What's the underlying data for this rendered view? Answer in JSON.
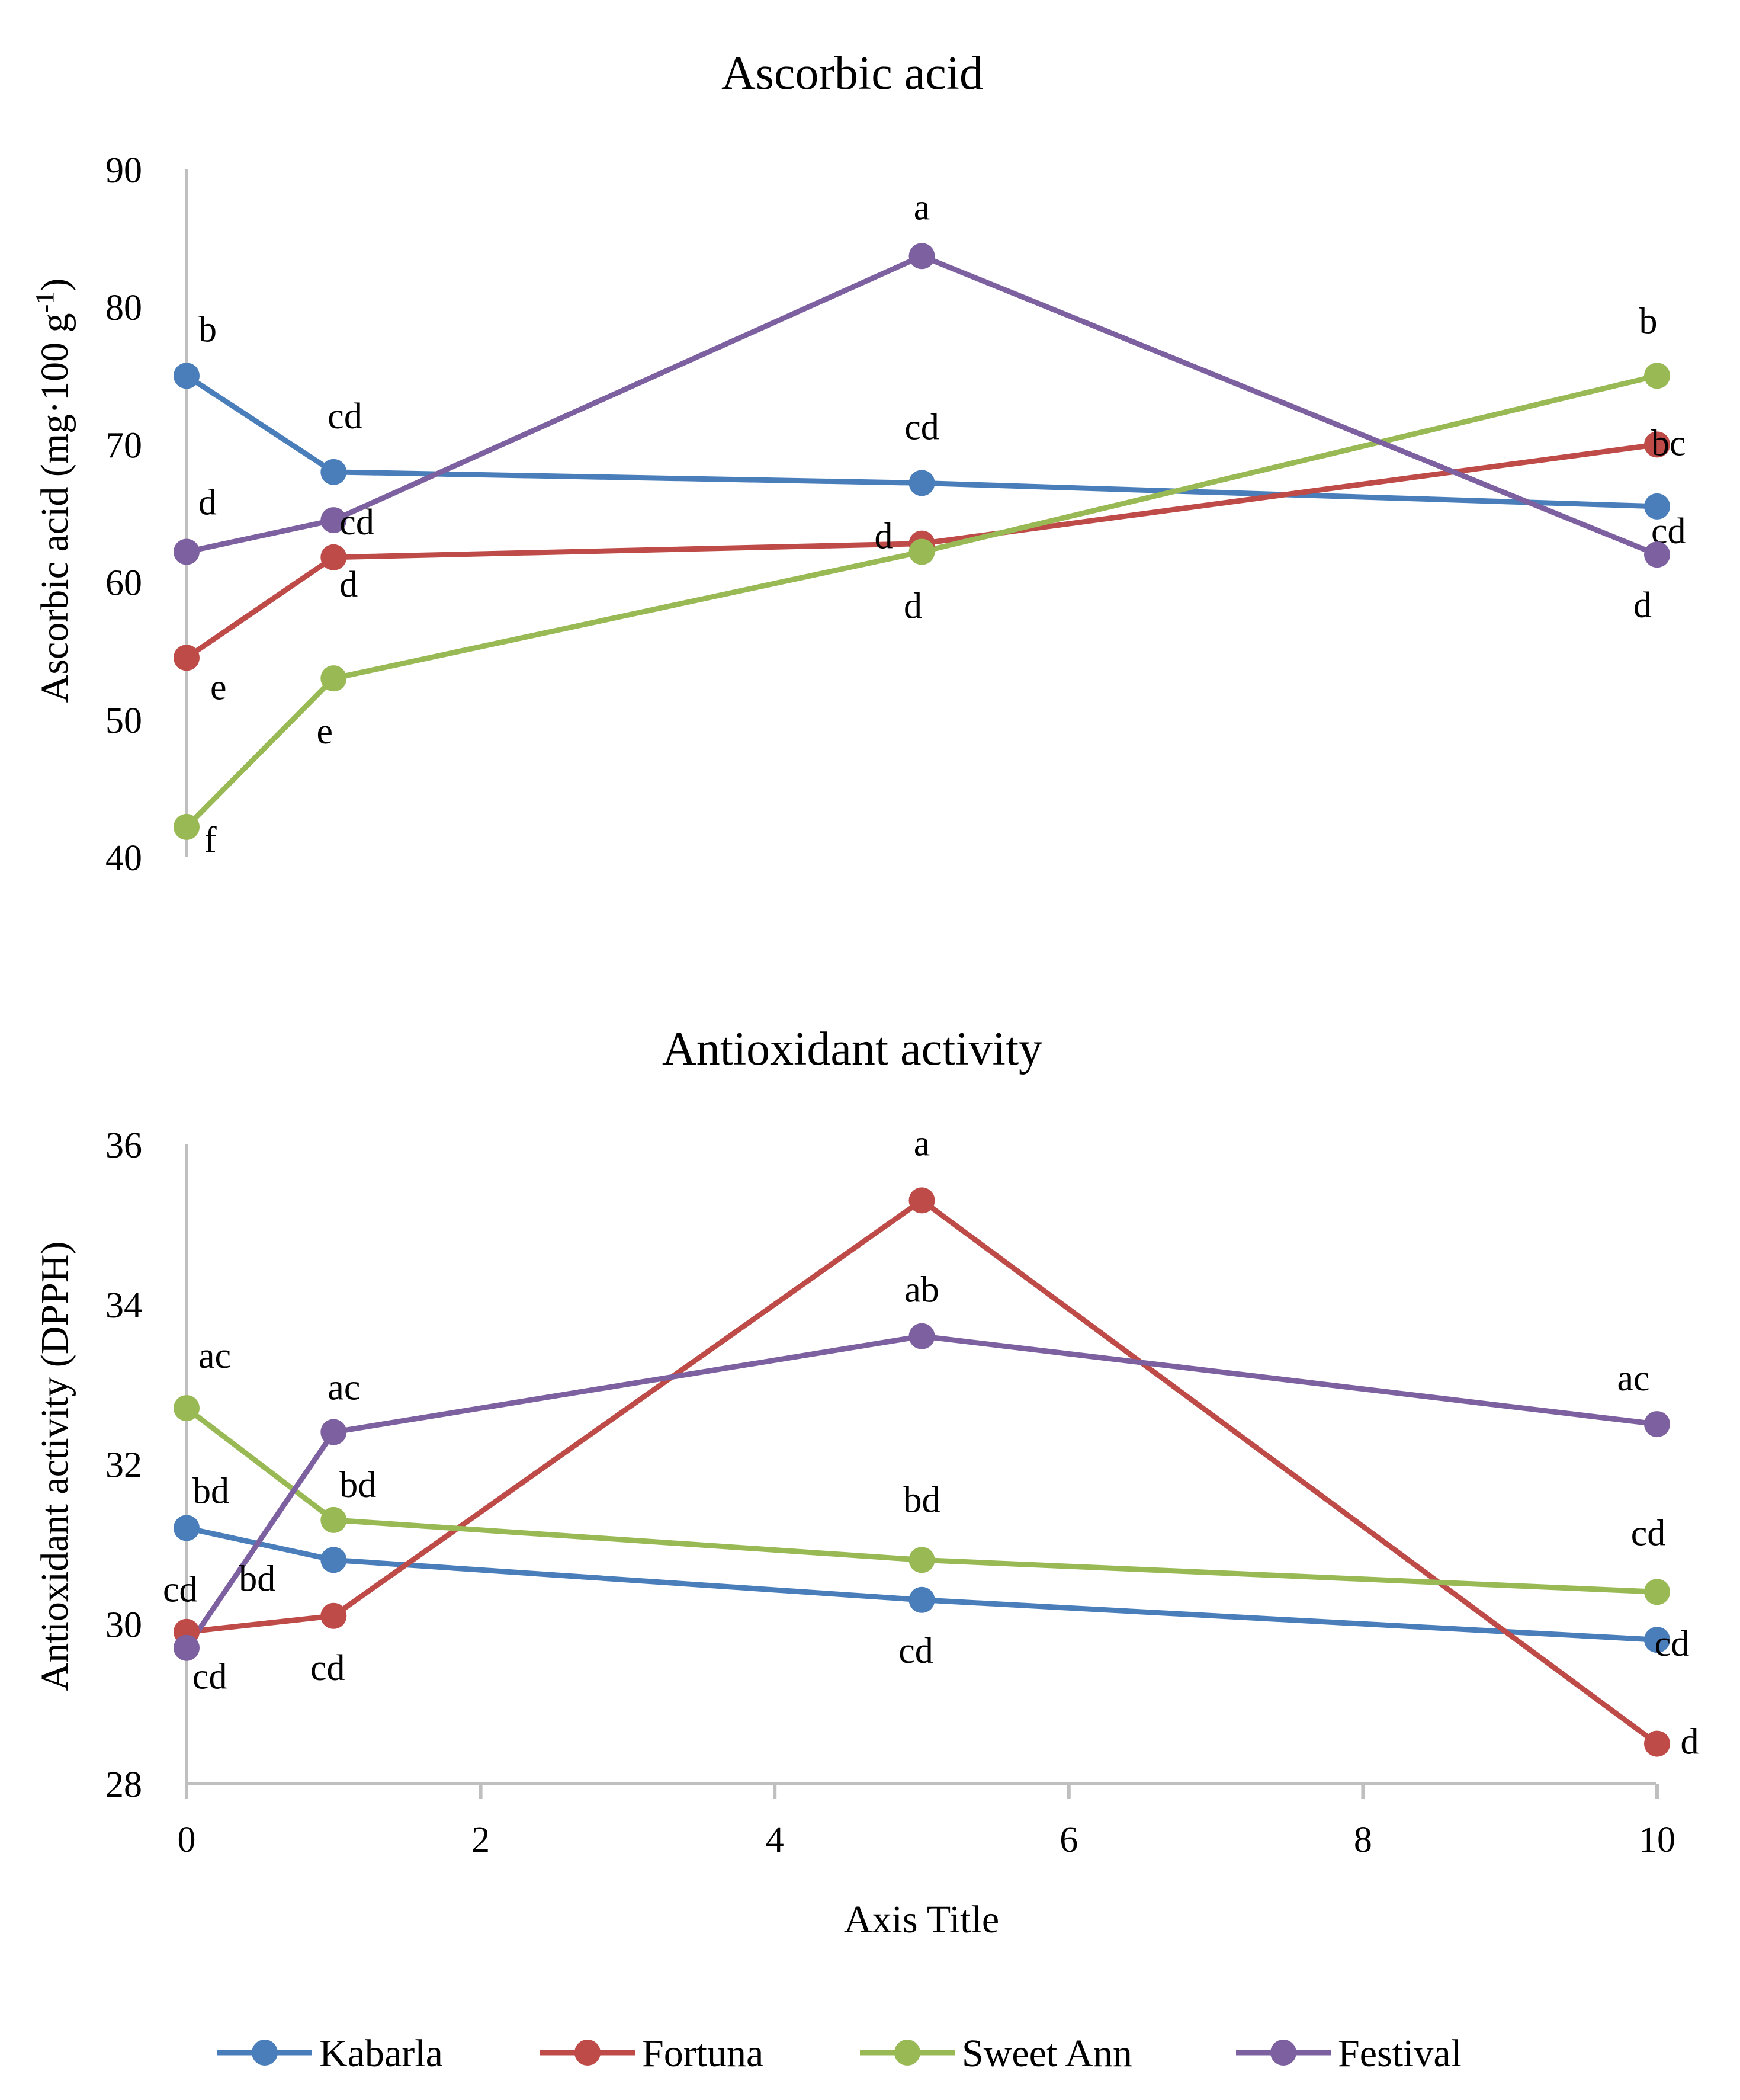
{
  "chart_data": [
    {
      "type": "line",
      "title": "Ascorbic acid",
      "ylabel": "Ascorbic acid (mg·100 g",
      "ylabel_sup": "-1",
      "ylabel_close": ")",
      "ylim": [
        40,
        90
      ],
      "yticks": [
        "40",
        "50",
        "60",
        "70",
        "80",
        "90"
      ],
      "series": [
        {
          "name": "Kabarla",
          "color": "#4a7ebb",
          "x": [
            0,
            1,
            5,
            10
          ],
          "y": [
            75,
            68,
            67.2,
            65.5
          ],
          "labels": [
            "b",
            "cd",
            "cd",
            "cd"
          ]
        },
        {
          "name": "Fortuna",
          "color": "#be4b48",
          "x": [
            0,
            1,
            5,
            10
          ],
          "y": [
            54.5,
            61.8,
            62.8,
            70
          ],
          "labels": [
            "e",
            "d",
            "d",
            "bc"
          ]
        },
        {
          "name": "Sweet Ann",
          "color": "#98b954",
          "x": [
            0,
            1,
            5,
            10
          ],
          "y": [
            42.2,
            53,
            62.2,
            75
          ],
          "labels": [
            "f",
            "e",
            "d",
            "b"
          ]
        },
        {
          "name": "Festival",
          "color": "#7d60a0",
          "x": [
            0,
            1,
            5,
            10
          ],
          "y": [
            62.2,
            64.5,
            83.7,
            62
          ],
          "labels": [
            "d",
            "cd",
            "a",
            "d"
          ]
        }
      ]
    },
    {
      "type": "line",
      "title": "Antioxidant activity",
      "ylabel": "Antioxidant activity (DPPH)",
      "xlabel": "Axis Title",
      "xlim": [
        0,
        10
      ],
      "xticks": [
        "0",
        "2",
        "4",
        "6",
        "8",
        "10"
      ],
      "ylim": [
        28,
        36
      ],
      "yticks": [
        "28",
        "30",
        "32",
        "34",
        "36"
      ],
      "series": [
        {
          "name": "Kabarla",
          "color": "#4a7ebb",
          "x": [
            0,
            1,
            5,
            10
          ],
          "y": [
            31.2,
            30.8,
            30.3,
            29.8
          ],
          "labels": [
            "bd",
            "bd",
            "cd",
            "cd"
          ]
        },
        {
          "name": "Fortuna",
          "color": "#be4b48",
          "x": [
            0,
            1,
            5,
            10
          ],
          "y": [
            29.9,
            30.1,
            35.3,
            28.5
          ],
          "labels": [
            "cd",
            "cd",
            "a",
            "d"
          ]
        },
        {
          "name": "Sweet Ann",
          "color": "#98b954",
          "x": [
            0,
            1,
            5,
            10
          ],
          "y": [
            32.7,
            31.3,
            30.8,
            30.4
          ],
          "labels": [
            "ac",
            "bd",
            "bd",
            "cd"
          ]
        },
        {
          "name": "Festival",
          "color": "#7d60a0",
          "x": [
            0,
            1,
            5,
            10
          ],
          "y": [
            29.7,
            32.4,
            33.6,
            32.5
          ],
          "labels": [
            "cd",
            "ac",
            "ab",
            "ac"
          ]
        }
      ]
    }
  ],
  "legend": [
    {
      "name": "Kabarla",
      "color": "#4a7ebb"
    },
    {
      "name": "Fortuna",
      "color": "#be4b48"
    },
    {
      "name": "Sweet Ann",
      "color": "#98b954"
    },
    {
      "name": "Festival",
      "color": "#7d60a0"
    }
  ]
}
